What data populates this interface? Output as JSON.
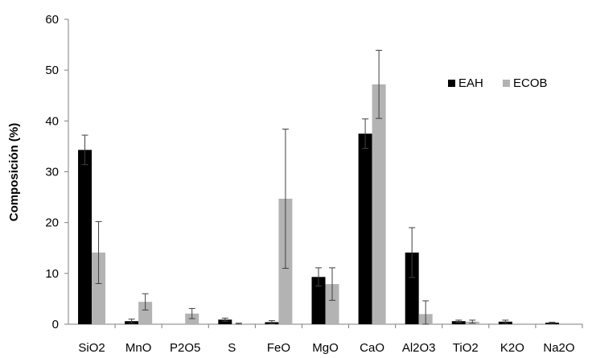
{
  "chart_data": {
    "type": "bar",
    "title": "",
    "xlabel": "",
    "ylabel": "Composición (%)",
    "ylim": [
      0,
      60
    ],
    "yticks": [
      0,
      10,
      20,
      30,
      40,
      50,
      60
    ],
    "grid": false,
    "legend_position": "top-right",
    "categories": [
      "SiO2",
      "MnO",
      "P2O5",
      "S",
      "FeO",
      "MgO",
      "CaO",
      "Al2O3",
      "TiO2",
      "K2O",
      "Na2O"
    ],
    "series": [
      {
        "name": "EAH",
        "color": "#000000",
        "values": [
          34.3,
          0.6,
          0.0,
          0.9,
          0.4,
          9.3,
          37.5,
          14.1,
          0.6,
          0.5,
          0.3
        ],
        "errors": [
          2.9,
          0.4,
          0.0,
          0.3,
          0.3,
          1.8,
          2.9,
          4.9,
          0.2,
          0.3,
          0.1
        ]
      },
      {
        "name": "ECOB",
        "color": "#b3b3b3",
        "values": [
          14.1,
          4.4,
          2.1,
          0.1,
          24.7,
          7.9,
          47.2,
          2.0,
          0.5,
          0.0,
          0.0
        ],
        "errors": [
          6.1,
          1.6,
          1.0,
          0.1,
          13.7,
          3.2,
          6.7,
          2.6,
          0.3,
          0.0,
          0.0
        ]
      }
    ]
  }
}
